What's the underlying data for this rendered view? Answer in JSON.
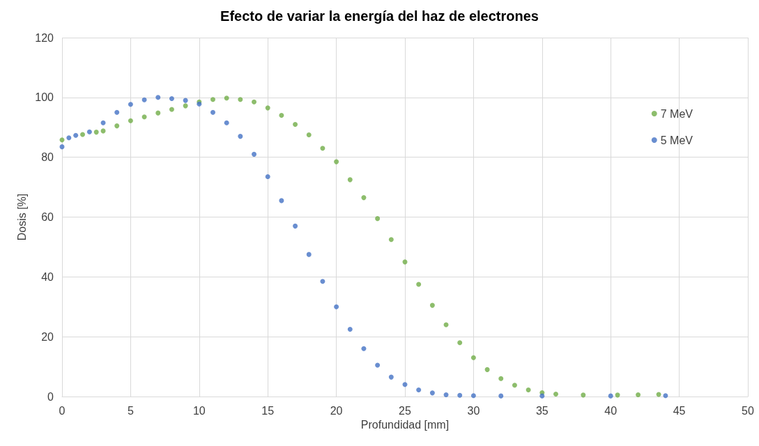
{
  "chart_data": {
    "type": "scatter",
    "title": "Efecto de variar la energía del haz de electrones",
    "xlabel": "Profundidad [mm]",
    "ylabel": "Dosis [%]",
    "xlim": [
      0,
      50
    ],
    "xticks": [
      0,
      5,
      10,
      15,
      20,
      25,
      30,
      35,
      40,
      45,
      50
    ],
    "ylim": [
      0,
      120
    ],
    "yticks": [
      0,
      20,
      40,
      60,
      80,
      100,
      120
    ],
    "grid": true,
    "legend": "right",
    "marker": "circle",
    "series": [
      {
        "name": "7 MeV",
        "color": "#70ad47",
        "x": [
          0,
          1.5,
          2.5,
          3,
          4,
          5,
          6,
          7,
          8,
          9,
          10,
          11,
          12,
          13,
          14,
          15,
          16,
          17,
          18,
          19,
          20,
          21,
          22,
          23,
          24,
          25,
          26,
          27,
          28,
          29,
          30,
          31,
          32,
          33,
          34,
          35,
          36,
          38,
          40.5,
          42,
          43.5
        ],
        "values": [
          85.8,
          87.6,
          88.4,
          88.8,
          90.5,
          92.2,
          93.5,
          94.8,
          96,
          97.2,
          98.5,
          99.3,
          99.8,
          99.3,
          98.5,
          96.5,
          94,
          91,
          87.5,
          83,
          78.5,
          72.5,
          66.5,
          59.5,
          52.5,
          45,
          37.5,
          30.5,
          24,
          18,
          13,
          9,
          6,
          3.8,
          2.2,
          1.3,
          0.8,
          0.5,
          0.5,
          0.6,
          0.7
        ]
      },
      {
        "name": "5 MeV",
        "color": "#4472c4",
        "x": [
          0,
          0.5,
          1,
          2,
          3,
          4,
          5,
          6,
          7,
          8,
          9,
          10,
          11,
          12,
          13,
          14,
          15,
          16,
          17,
          18,
          19,
          20,
          21,
          22,
          23,
          24,
          25,
          26,
          27,
          28,
          29,
          30,
          32,
          35,
          40,
          44
        ],
        "values": [
          83.5,
          86.5,
          87.3,
          88.5,
          91.5,
          95,
          97.7,
          99.2,
          100,
          99.6,
          99,
          97.8,
          95,
          91.5,
          87,
          81,
          73.5,
          65.5,
          57,
          47.5,
          38.5,
          30,
          22.5,
          16,
          10.5,
          6.5,
          4,
          2.2,
          1.2,
          0.6,
          0.4,
          0.3,
          0.2,
          0.2,
          0.2,
          0.3
        ]
      }
    ]
  }
}
